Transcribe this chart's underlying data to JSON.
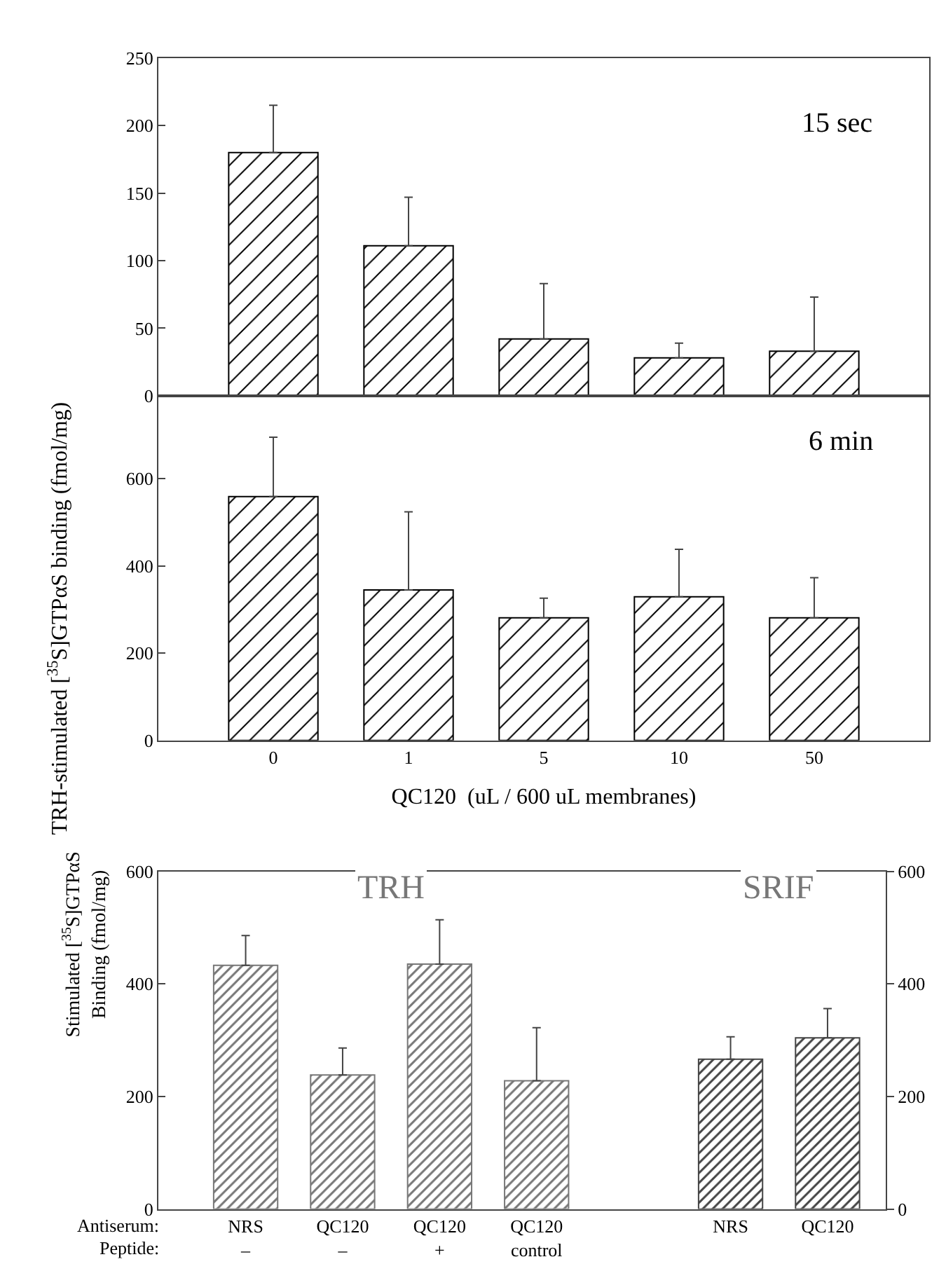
{
  "chart_data": [
    {
      "type": "bar",
      "categories": [
        "0",
        "1",
        "5",
        "10",
        "50"
      ],
      "values": [
        180,
        111,
        42,
        28,
        33
      ],
      "color": "#000000",
      "errors": [
        [
          180,
          215
        ],
        [
          111,
          147
        ],
        [
          42,
          83
        ],
        [
          28,
          39
        ],
        [
          33,
          73
        ]
      ],
      "ylabel": "TRH-stimulated [$^{35}$S]GTPαS binding (fmol/mg)",
      "annotations": [
        "15 sec"
      ],
      "ylim": [
        0,
        250
      ],
      "yticks": [
        0,
        50,
        100,
        150,
        200,
        250
      ],
      "tick_labels": "y"
    },
    {
      "type": "bar",
      "categories": [
        "0",
        "1",
        "5",
        "10",
        "50"
      ],
      "values": [
        559,
        345,
        281,
        329,
        281
      ],
      "color": "#000000",
      "errors": [
        [
          559,
          695
        ],
        [
          345,
          524
        ],
        [
          281,
          326
        ],
        [
          329,
          438
        ],
        [
          281,
          373
        ]
      ],
      "xlabel": "QC120  (uL / 600 uL membranes)",
      "annotations": [
        "6 min"
      ],
      "ylim": [
        0,
        790
      ],
      "yticks": [
        0,
        200,
        400,
        600
      ]
    },
    {
      "type": "bar",
      "categories": [
        "NRS\n–",
        "QC120\n–",
        "QC120\n+",
        "QC120\ncontrol",
        null,
        "NRS",
        "QC120"
      ],
      "values": [
        433,
        238,
        435,
        228,
        null,
        266,
        304
      ],
      "colors": [
        "#777777",
        "#777777",
        "#777777",
        "#777777",
        null,
        "#444444",
        "#444444"
      ],
      "errors": [
        [
          433,
          486
        ],
        [
          238,
          286
        ],
        [
          435,
          514
        ],
        [
          228,
          322
        ],
        null,
        [
          266,
          306
        ],
        [
          304,
          356
        ]
      ],
      "ylabel": "Stimulated [$^{35}$S]GTPαS\nBinding (fmol/mg)",
      "annotations": [
        "TRH",
        "SRIF",
        "Antiserum:",
        "Peptide:"
      ],
      "ylim": [
        0,
        600
      ],
      "yticks": [
        0,
        200,
        400,
        600
      ],
      "y2lim": [
        0,
        600
      ],
      "y2ticks": [
        0,
        200,
        400,
        600
      ]
    }
  ]
}
